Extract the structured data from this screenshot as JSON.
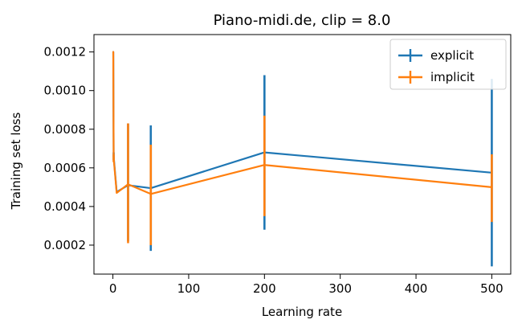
{
  "chart_data": {
    "type": "line",
    "title": "Piano-midi.de, clip = 8.0",
    "xlabel": "Learning rate",
    "ylabel": "Training set loss",
    "xlim": [
      -25,
      525
    ],
    "ylim": [
      5e-05,
      0.00129
    ],
    "xticks": [
      0,
      100,
      200,
      300,
      400,
      500
    ],
    "xtick_labels": [
      "0",
      "100",
      "200",
      "300",
      "400",
      "500"
    ],
    "yticks": [
      0.0002,
      0.0004,
      0.0006,
      0.0008,
      0.001,
      0.0012
    ],
    "ytick_labels": [
      "0.0002",
      "0.0004",
      "0.0006",
      "0.0008",
      "0.0010",
      "0.0012"
    ],
    "grid": false,
    "legend_position": "top-right",
    "error_bars": true,
    "x": [
      0.5,
      1,
      5,
      20,
      50,
      200,
      500
    ],
    "series": [
      {
        "name": "explicit",
        "color": "#1f77b4",
        "values": [
          0.0012,
          0.00066,
          0.000475,
          0.00051,
          0.000495,
          0.00068,
          0.000575
        ],
        "error_low": [
          0.0012,
          0.00064,
          0.000475,
          0.00022,
          0.00017,
          0.00028,
          9e-05
        ],
        "error_high": [
          0.0012,
          0.00068,
          0.000475,
          0.00083,
          0.00082,
          0.00108,
          0.00106
        ]
      },
      {
        "name": "implicit",
        "color": "#ff7f0e",
        "values": [
          0.0012,
          0.00065,
          0.00047,
          0.000515,
          0.000465,
          0.000615,
          0.0005
        ],
        "error_low": [
          0.0012,
          0.00063,
          0.00047,
          0.00021,
          0.0002,
          0.00035,
          0.00032
        ],
        "error_high": [
          0.0012,
          0.00067,
          0.00047,
          0.00083,
          0.00072,
          0.00087,
          0.00067
        ]
      }
    ]
  }
}
